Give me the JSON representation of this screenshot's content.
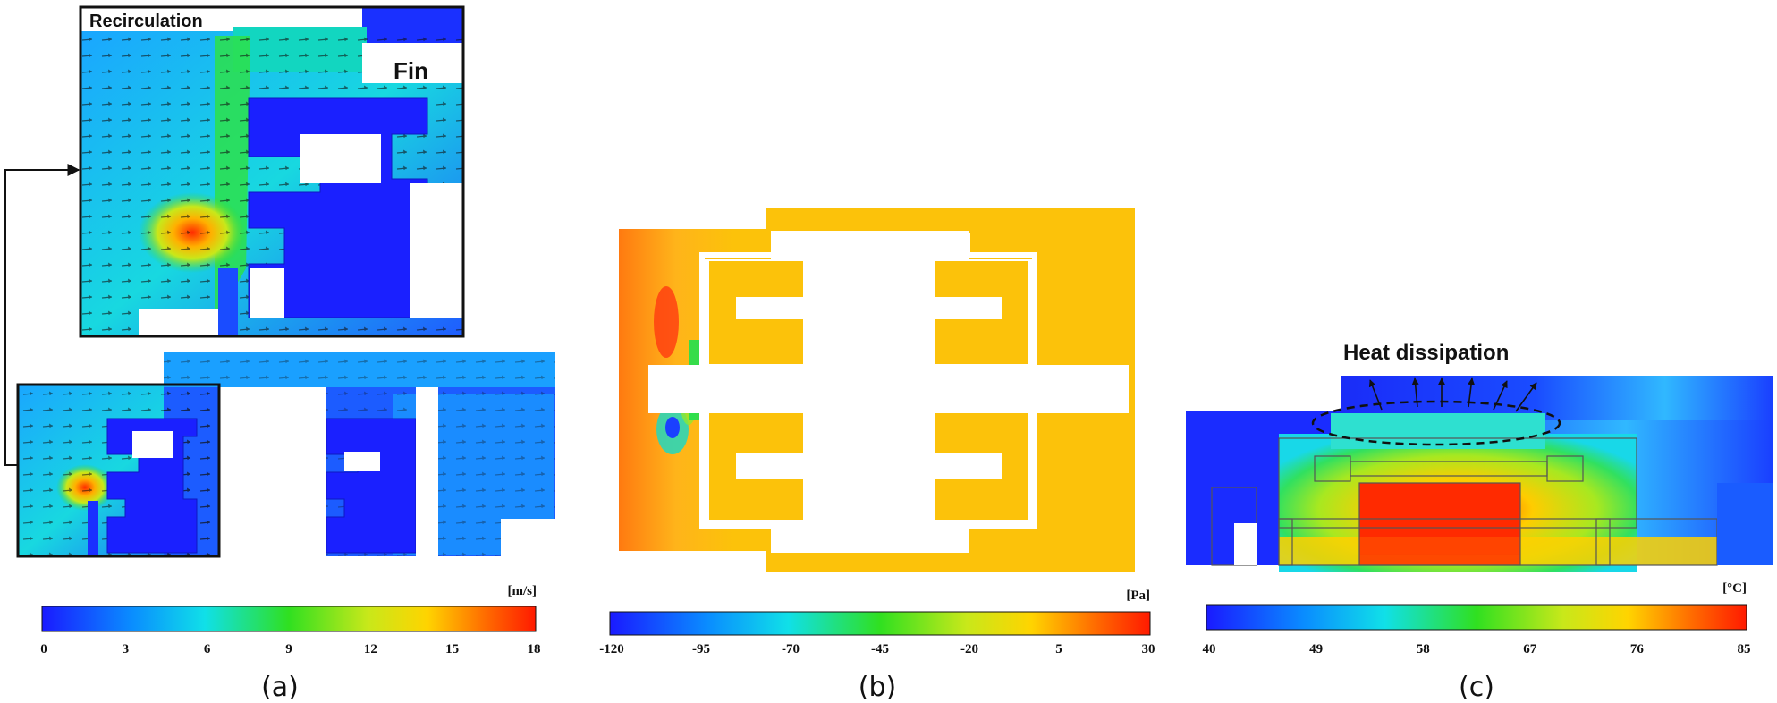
{
  "panels": {
    "a": {
      "caption": "(a)",
      "labels": {
        "recirculation": "Recirculation",
        "fin": "Fin"
      },
      "colorbar": {
        "unit": "[m/s]",
        "ticks": [
          "0",
          "3",
          "6",
          "9",
          "12",
          "15",
          "18"
        ]
      }
    },
    "b": {
      "caption": "(b)",
      "colorbar": {
        "unit": "[Pa]",
        "ticks": [
          "-120",
          "-95",
          "-70",
          "-45",
          "-20",
          "5",
          "30"
        ]
      }
    },
    "c": {
      "caption": "(c)",
      "labels": {
        "heat": "Heat dissipation"
      },
      "colorbar": {
        "unit": "[°C]",
        "ticks": [
          "40",
          "49",
          "58",
          "67",
          "76",
          "85"
        ]
      }
    }
  },
  "colors": {
    "jet": [
      "#1a1aff",
      "#0aa8ff",
      "#10e8c8",
      "#39e21e",
      "#c8e81a",
      "#ffd800",
      "#ff6a00",
      "#ff1a00"
    ],
    "pressure_fill": "#fcc20a",
    "cold_blue": "#1530f0"
  }
}
